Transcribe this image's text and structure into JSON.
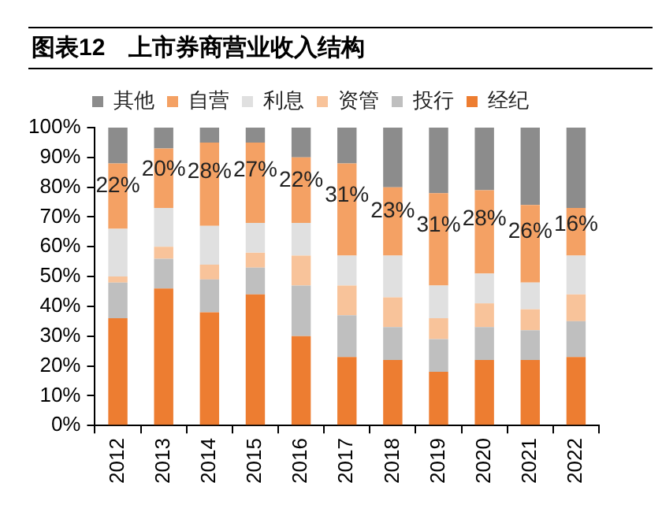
{
  "chart_data": {
    "type": "bar",
    "title": "图表12　上市券商营业收入结构",
    "stacked": true,
    "legend": "top",
    "categories": [
      "2012",
      "2013",
      "2014",
      "2015",
      "2016",
      "2017",
      "2018",
      "2019",
      "2020",
      "2021",
      "2022"
    ],
    "ylim": [
      0,
      100
    ],
    "yticks": [
      {
        "value": 0,
        "label": "0%"
      },
      {
        "value": 10,
        "label": "10%"
      },
      {
        "value": 20,
        "label": "20%"
      },
      {
        "value": 30,
        "label": "30%"
      },
      {
        "value": 40,
        "label": "40%"
      },
      {
        "value": 50,
        "label": "50%"
      },
      {
        "value": 60,
        "label": "60%"
      },
      {
        "value": 70,
        "label": "70%"
      },
      {
        "value": 80,
        "label": "80%"
      },
      {
        "value": 90,
        "label": "90%"
      },
      {
        "value": 100,
        "label": "100%"
      }
    ],
    "series": [
      {
        "name": "经纪",
        "color": "#ed7d31",
        "values": [
          36,
          46,
          38,
          44,
          30,
          23,
          22,
          18,
          22,
          22,
          23
        ]
      },
      {
        "name": "投行",
        "color": "#bfbfbf",
        "values": [
          12,
          10,
          11,
          9,
          17,
          14,
          11,
          11,
          11,
          10,
          12
        ]
      },
      {
        "name": "资管",
        "color": "#f8c39a",
        "values": [
          2,
          4,
          5,
          5,
          10,
          10,
          10,
          7,
          8,
          7,
          9
        ]
      },
      {
        "name": "利息",
        "color": "#e0e0e0",
        "values": [
          16,
          13,
          13,
          10,
          11,
          10,
          14,
          11,
          10,
          9,
          13
        ]
      },
      {
        "name": "自营",
        "color": "#f4a164",
        "values": [
          22,
          20,
          28,
          27,
          22,
          31,
          23,
          31,
          28,
          26,
          16
        ],
        "value_labels": [
          "22%",
          "20%",
          "28%",
          "27%",
          "22%",
          "31%",
          "23%",
          "31%",
          "28%",
          "26%",
          "16%"
        ]
      },
      {
        "name": "其他",
        "color": "#8c8c8c",
        "values": [
          12,
          7,
          5,
          5,
          10,
          12,
          20,
          22,
          21,
          26,
          27
        ]
      }
    ]
  }
}
